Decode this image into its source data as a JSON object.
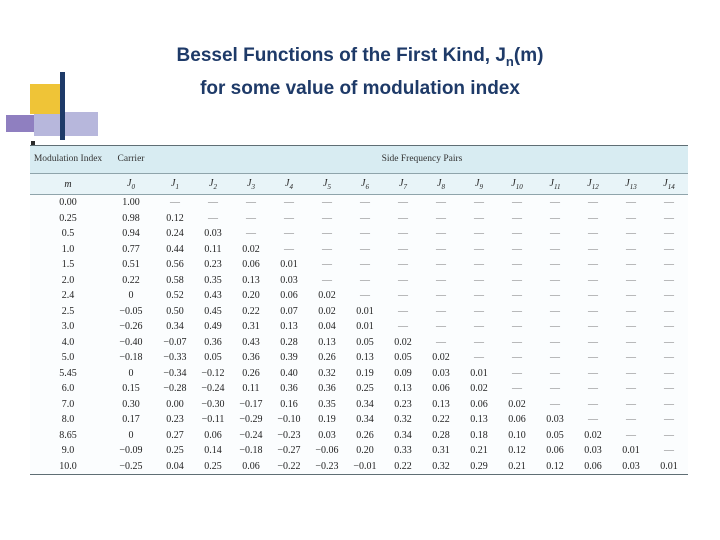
{
  "slide": {
    "title": {
      "line1_pre": "Bessel Functions of the First Kind, J",
      "line1_sub": "n",
      "line1_post": "(m)",
      "line2": "for some value of modulation index"
    },
    "colors": {
      "title_text": "#1E3A68",
      "table_header_band": "#D8ECF2",
      "accent_yellow": "#EFC437",
      "accent_navy": "#1E3A68",
      "accent_lavender": "#B7B7DC",
      "accent_purple": "#8F7FC0"
    }
  },
  "table": {
    "group_headers": [
      "Modulation Index",
      "Carrier",
      "Side Frequency Pairs"
    ],
    "columns": [
      "m",
      "J0",
      "J1",
      "J2",
      "J3",
      "J4",
      "J5",
      "J6",
      "J7",
      "J8",
      "J9",
      "J10",
      "J11",
      "J12",
      "J13",
      "J14"
    ],
    "empty_cell": "—",
    "rows": [
      [
        "0.00",
        "1.00",
        "—",
        "—",
        "—",
        "—",
        "—",
        "—",
        "—",
        "—",
        "—",
        "—",
        "—",
        "—",
        "—",
        "—"
      ],
      [
        "0.25",
        "0.98",
        "0.12",
        "—",
        "—",
        "—",
        "—",
        "—",
        "—",
        "—",
        "—",
        "—",
        "—",
        "—",
        "—",
        "—"
      ],
      [
        "0.5",
        "0.94",
        "0.24",
        "0.03",
        "—",
        "—",
        "—",
        "—",
        "—",
        "—",
        "—",
        "—",
        "—",
        "—",
        "—",
        "—"
      ],
      [
        "1.0",
        "0.77",
        "0.44",
        "0.11",
        "0.02",
        "—",
        "—",
        "—",
        "—",
        "—",
        "—",
        "—",
        "—",
        "—",
        "—",
        "—"
      ],
      [
        "1.5",
        "0.51",
        "0.56",
        "0.23",
        "0.06",
        "0.01",
        "—",
        "—",
        "—",
        "—",
        "—",
        "—",
        "—",
        "—",
        "—",
        "—"
      ],
      [
        "2.0",
        "0.22",
        "0.58",
        "0.35",
        "0.13",
        "0.03",
        "—",
        "—",
        "—",
        "—",
        "—",
        "—",
        "—",
        "—",
        "—",
        "—"
      ],
      [
        "2.4",
        "0",
        "0.52",
        "0.43",
        "0.20",
        "0.06",
        "0.02",
        "—",
        "—",
        "—",
        "—",
        "—",
        "—",
        "—",
        "—",
        "—"
      ],
      [
        "2.5",
        "−0.05",
        "0.50",
        "0.45",
        "0.22",
        "0.07",
        "0.02",
        "0.01",
        "—",
        "—",
        "—",
        "—",
        "—",
        "—",
        "—",
        "—"
      ],
      [
        "3.0",
        "−0.26",
        "0.34",
        "0.49",
        "0.31",
        "0.13",
        "0.04",
        "0.01",
        "—",
        "—",
        "—",
        "—",
        "—",
        "—",
        "—",
        "—"
      ],
      [
        "4.0",
        "−0.40",
        "−0.07",
        "0.36",
        "0.43",
        "0.28",
        "0.13",
        "0.05",
        "0.02",
        "—",
        "—",
        "—",
        "—",
        "—",
        "—",
        "—"
      ],
      [
        "5.0",
        "−0.18",
        "−0.33",
        "0.05",
        "0.36",
        "0.39",
        "0.26",
        "0.13",
        "0.05",
        "0.02",
        "—",
        "—",
        "—",
        "—",
        "—",
        "—"
      ],
      [
        "5.45",
        "0",
        "−0.34",
        "−0.12",
        "0.26",
        "0.40",
        "0.32",
        "0.19",
        "0.09",
        "0.03",
        "0.01",
        "—",
        "—",
        "—",
        "—",
        "—"
      ],
      [
        "6.0",
        "0.15",
        "−0.28",
        "−0.24",
        "0.11",
        "0.36",
        "0.36",
        "0.25",
        "0.13",
        "0.06",
        "0.02",
        "—",
        "—",
        "—",
        "—",
        "—"
      ],
      [
        "7.0",
        "0.30",
        "0.00",
        "−0.30",
        "−0.17",
        "0.16",
        "0.35",
        "0.34",
        "0.23",
        "0.13",
        "0.06",
        "0.02",
        "—",
        "—",
        "—",
        "—"
      ],
      [
        "8.0",
        "0.17",
        "0.23",
        "−0.11",
        "−0.29",
        "−0.10",
        "0.19",
        "0.34",
        "0.32",
        "0.22",
        "0.13",
        "0.06",
        "0.03",
        "—",
        "—",
        "—"
      ],
      [
        "8.65",
        "0",
        "0.27",
        "0.06",
        "−0.24",
        "−0.23",
        "0.03",
        "0.26",
        "0.34",
        "0.28",
        "0.18",
        "0.10",
        "0.05",
        "0.02",
        "—",
        "—"
      ],
      [
        "9.0",
        "−0.09",
        "0.25",
        "0.14",
        "−0.18",
        "−0.27",
        "−0.06",
        "0.20",
        "0.33",
        "0.31",
        "0.21",
        "0.12",
        "0.06",
        "0.03",
        "0.01",
        "—"
      ],
      [
        "10.0",
        "−0.25",
        "0.04",
        "0.25",
        "0.06",
        "−0.22",
        "−0.23",
        "−0.01",
        "0.22",
        "0.32",
        "0.29",
        "0.21",
        "0.12",
        "0.06",
        "0.03",
        "0.01"
      ]
    ]
  }
}
